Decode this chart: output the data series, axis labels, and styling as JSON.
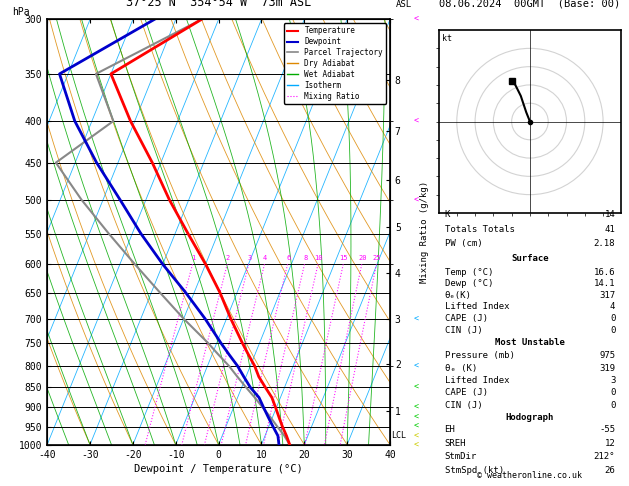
{
  "title_location": "37°25'N  354°54'W  73m ASL",
  "date_str": "08.06.2024  00GMT  (Base: 00)",
  "xlabel": "Dewpoint / Temperature (°C)",
  "pressure_ticks": [
    300,
    350,
    400,
    450,
    500,
    550,
    600,
    650,
    700,
    750,
    800,
    850,
    900,
    950,
    1000
  ],
  "temp_ticks": [
    -40,
    -30,
    -20,
    -10,
    0,
    10,
    20,
    30,
    40
  ],
  "P_min": 300,
  "P_max": 1000,
  "T_min": -40,
  "T_max": 40,
  "skew_factor": 40,
  "temp_profile": {
    "pressure": [
      1000,
      975,
      950,
      925,
      900,
      875,
      850,
      825,
      800,
      775,
      750,
      700,
      650,
      600,
      550,
      500,
      450,
      400,
      350,
      300
    ],
    "temp": [
      16.6,
      15.0,
      13.2,
      11.5,
      9.8,
      8.0,
      5.5,
      3.0,
      1.0,
      -1.5,
      -4.0,
      -9.0,
      -14.0,
      -20.0,
      -27.0,
      -34.5,
      -42.0,
      -51.0,
      -60.0,
      -44.0
    ],
    "dewp": [
      14.1,
      13.0,
      11.0,
      9.0,
      7.0,
      5.0,
      2.0,
      -0.5,
      -3.0,
      -6.0,
      -9.0,
      -15.0,
      -22.0,
      -30.0,
      -38.0,
      -46.0,
      -55.0,
      -64.0,
      -72.0,
      -55.0
    ]
  },
  "parcel_profile": {
    "pressure": [
      1000,
      975,
      950,
      925,
      900,
      875,
      850,
      825,
      800,
      775,
      750,
      700,
      650,
      600,
      550,
      500,
      450,
      400,
      350,
      300
    ],
    "temp": [
      16.6,
      14.5,
      12.0,
      9.5,
      6.8,
      4.0,
      1.0,
      -2.0,
      -5.0,
      -8.5,
      -12.0,
      -20.0,
      -28.0,
      -36.5,
      -45.5,
      -55.0,
      -64.5,
      -55.0,
      -63.5,
      -44.0
    ]
  },
  "temperature_color": "#ff0000",
  "dewpoint_color": "#0000cc",
  "parcel_color": "#888888",
  "dry_adiabat_color": "#dd8800",
  "wet_adiabat_color": "#00aa00",
  "isotherm_color": "#00aaff",
  "mixing_ratio_color": "#ff00ff",
  "km_levels": [
    1,
    2,
    3,
    4,
    5,
    6,
    7,
    8
  ],
  "km_pressures": [
    908,
    795,
    700,
    615,
    540,
    473,
    411,
    356
  ],
  "mixing_ratio_vals": [
    1,
    2,
    3,
    4,
    6,
    8,
    10,
    15,
    20,
    25
  ],
  "wind_pressures": [
    1000,
    975,
    950,
    925,
    900,
    850,
    800,
    700,
    500,
    400,
    300
  ],
  "wind_colors": [
    "#cccc00",
    "#cccc00",
    "#00cc00",
    "#00cc00",
    "#00cc00",
    "#00cc00",
    "#00aaff",
    "#00aaff",
    "#ff00ff",
    "#ff00ff",
    "#ff00ff"
  ],
  "lcl_pressure": 975,
  "surface_data": {
    "K": 14,
    "Totals_Totals": 41,
    "PW_cm": "2.18",
    "Temp_C": "16.6",
    "Dewp_C": "14.1",
    "theta_e_K": 317,
    "Lifted_Index": 4,
    "CAPE_J": 0,
    "CIN_J": 0
  },
  "most_unstable": {
    "Pressure_mb": 975,
    "theta_e_K": 319,
    "Lifted_Index": 3,
    "CAPE_J": 0,
    "CIN_J": 0
  },
  "hodograph_data": {
    "EH": -55,
    "SREH": 12,
    "StmDir": "212°",
    "StmSpd_kt": 26
  },
  "hodo_u": [
    0,
    -2,
    -5,
    -8,
    -10
  ],
  "hodo_v": [
    0,
    5,
    14,
    20,
    22
  ],
  "copyright": "© weatheronline.co.uk"
}
